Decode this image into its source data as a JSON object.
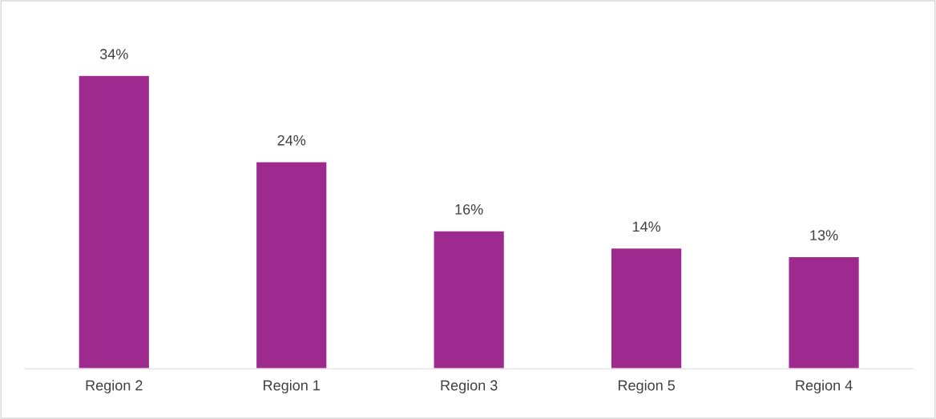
{
  "chart_data": {
    "type": "bar",
    "categories": [
      "Region 2",
      "Region 1",
      "Region 3",
      "Region 5",
      "Region 4"
    ],
    "values": [
      34,
      24,
      16,
      14,
      13
    ],
    "value_labels": [
      "34%",
      "24%",
      "16%",
      "14%",
      "13%"
    ],
    "color": "#9e2a8f"
  }
}
